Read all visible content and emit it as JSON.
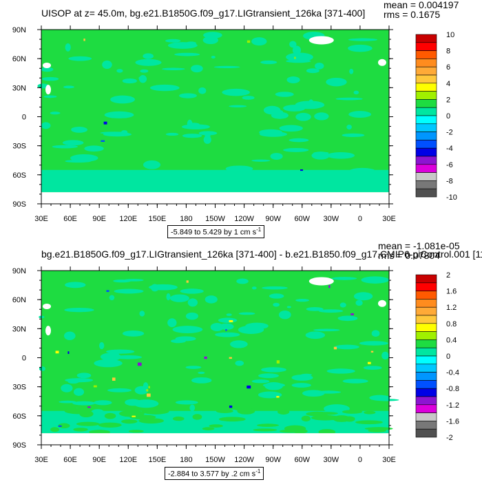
{
  "chart_data": [
    {
      "type": "heatmap",
      "title": "UISOP at z=  45.0m, bg.e21.B1850G.f09_g17.LIGtransient_126ka [371-400]",
      "stats": {
        "mean": "mean = 0.004197",
        "rms": "rms = 0.1675"
      },
      "range_label": "-5.849 to 5.429 by 1 cm s",
      "range_unit_sup": "-1",
      "x_tick_labels": [
        "30E",
        "60E",
        "90E",
        "120E",
        "150E",
        "180",
        "150W",
        "120W",
        "90W",
        "60W",
        "30W",
        "0",
        "30E"
      ],
      "y_tick_labels": [
        "90N",
        "60N",
        "30N",
        "0",
        "30S",
        "60S",
        "90S"
      ],
      "colorbar_labels": [
        "10",
        "8",
        "6",
        "4",
        "2",
        "0",
        "-2",
        "-4",
        "-6",
        "-8",
        "-10"
      ],
      "colorbar_colors": [
        "#c80000",
        "#ff0000",
        "#ff5a00",
        "#ff8c1e",
        "#ffaa37",
        "#ffc83c",
        "#ffff00",
        "#a0f000",
        "#1edc41",
        "#00e6a0",
        "#00ffff",
        "#00c8ff",
        "#0096ff",
        "#0050ff",
        "#0000e6",
        "#8c14d2",
        "#dc00dc",
        "#c8c8c8",
        "#787878",
        "#505050"
      ],
      "dominant_value_range": [
        -2,
        2
      ]
    },
    {
      "type": "heatmap",
      "title": "bg.e21.B1850G.f09_g17.LIGtransient_126ka [371-400] - b.e21.B1850.f09_g17.CMIP6-piControl.001 [11",
      "stats": {
        "mean": "mean = -1.081e-05",
        "rms": "rms = 0.07804"
      },
      "range_label": "-2.884 to 3.577 by .2 cm s",
      "range_unit_sup": "-1",
      "x_tick_labels": [
        "30E",
        "60E",
        "90E",
        "120E",
        "150E",
        "180",
        "150W",
        "120W",
        "90W",
        "60W",
        "30W",
        "0",
        "30E"
      ],
      "y_tick_labels": [
        "90N",
        "60N",
        "30N",
        "0",
        "30S",
        "60S",
        "90S"
      ],
      "colorbar_labels": [
        "2",
        "1.6",
        "1.2",
        "0.8",
        "0.4",
        "0",
        "-0.4",
        "-0.8",
        "-1.2",
        "-1.6",
        "-2"
      ],
      "colorbar_colors": [
        "#c80000",
        "#ff0000",
        "#ff5a00",
        "#ff8c1e",
        "#ffaa37",
        "#ffc83c",
        "#ffff00",
        "#a0f000",
        "#1edc41",
        "#00e6a0",
        "#00ffff",
        "#00c8ff",
        "#0096ff",
        "#0050ff",
        "#0000e6",
        "#8c14d2",
        "#dc00dc",
        "#c8c8c8",
        "#787878",
        "#505050"
      ],
      "dominant_value_range": [
        -0.4,
        0.4
      ]
    }
  ]
}
